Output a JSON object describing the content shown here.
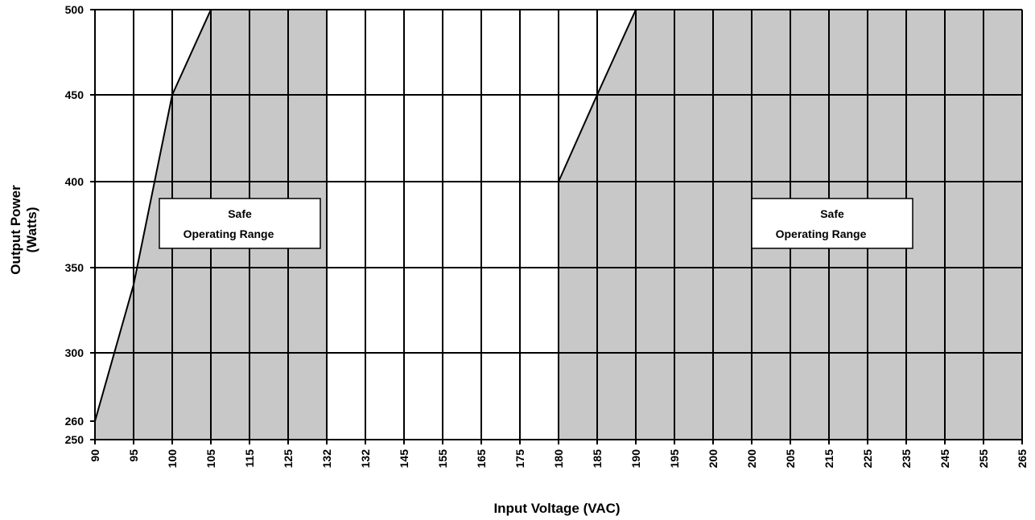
{
  "chart_data": {
    "type": "area",
    "title": "",
    "xlabel": "Input Voltage (VAC)",
    "ylabel_line1": "Output Power",
    "ylabel_line2": "(Watts)",
    "x_tick_labels": [
      "90",
      "95",
      "100",
      "105",
      "115",
      "125",
      "132",
      "132",
      "145",
      "155",
      "165",
      "175",
      "180",
      "185",
      "190",
      "195",
      "200",
      "200",
      "205",
      "215",
      "225",
      "235",
      "245",
      "255",
      "265"
    ],
    "y_ticks": [
      250,
      260,
      300,
      350,
      400,
      450,
      500
    ],
    "ylim": [
      250,
      500
    ],
    "grid": true,
    "shade_color": "#c8c8c8",
    "regions": [
      {
        "boundary": [
          {
            "x_index": 0,
            "y": 260
          },
          {
            "x_index": 1,
            "y": 340
          },
          {
            "x_index": 2,
            "y": 450
          },
          {
            "x_index": 3,
            "y": 500
          }
        ],
        "right_x_index": 6
      },
      {
        "boundary": [
          {
            "x_index": 12,
            "y": 400
          },
          {
            "x_index": 13,
            "y": 450
          },
          {
            "x_index": 14,
            "y": 500
          }
        ],
        "right_x_index": 24
      }
    ],
    "annotations": [
      {
        "line1": "Safe",
        "line2": "Operating Range",
        "region": 0
      },
      {
        "line1": "Safe",
        "line2": "Operating Range",
        "region": 1
      }
    ]
  }
}
